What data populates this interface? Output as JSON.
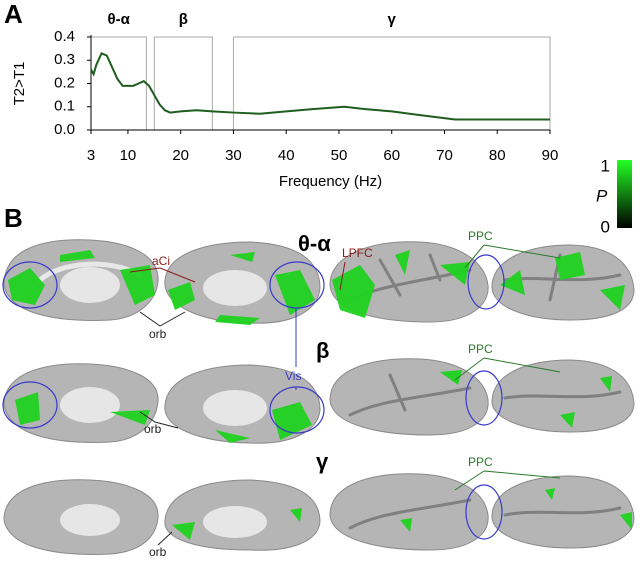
{
  "panel_labels": [
    "A",
    "B"
  ],
  "chart_data": {
    "type": "line",
    "y_label": "T2>T1",
    "x_label": "Frequency (Hz)",
    "x": [
      3,
      3.5,
      4,
      5,
      6,
      7,
      8,
      9,
      10,
      11,
      12,
      13,
      14,
      15,
      16,
      17,
      18,
      20,
      23,
      26,
      30,
      35,
      40,
      45,
      51,
      55,
      60,
      65,
      72,
      80,
      90
    ],
    "series": [
      {
        "name": "T2>T1",
        "color": "#1e5e1e",
        "values": [
          0.26,
          0.24,
          0.28,
          0.33,
          0.32,
          0.27,
          0.22,
          0.19,
          0.19,
          0.19,
          0.2,
          0.21,
          0.19,
          0.15,
          0.11,
          0.085,
          0.075,
          0.08,
          0.085,
          0.08,
          0.075,
          0.07,
          0.08,
          0.09,
          0.1,
          0.09,
          0.08,
          0.065,
          0.045,
          0.045,
          0.045
        ]
      }
    ],
    "xlim": [
      3,
      90
    ],
    "xticks": [
      3,
      10,
      20,
      30,
      40,
      50,
      60,
      70,
      80,
      90
    ],
    "ylim": [
      0,
      0.4
    ],
    "yticks": [
      {
        "value": 0,
        "label": "0.0"
      },
      0.1,
      0.2,
      0.3,
      0.4
    ],
    "bands": [
      {
        "label": "θ-α",
        "range": [
          3,
          13.5
        ]
      },
      {
        "label": "β",
        "range": [
          15,
          26
        ]
      },
      {
        "label": "γ",
        "range": [
          30,
          90
        ]
      }
    ]
  },
  "colorbar": {
    "label": "P",
    "ticks": [
      0,
      1
    ],
    "colors": [
      "#000000",
      "#22ff22"
    ]
  },
  "brain_panel": {
    "rows": [
      {
        "band": "θ-α",
        "labels": [
          "LPFC",
          "PPC",
          "aCi",
          "orb",
          "Vis"
        ]
      },
      {
        "band": "β",
        "labels": [
          "PPC",
          "orb"
        ]
      },
      {
        "band": "γ",
        "labels": [
          "PPC",
          "orb"
        ]
      }
    ]
  }
}
